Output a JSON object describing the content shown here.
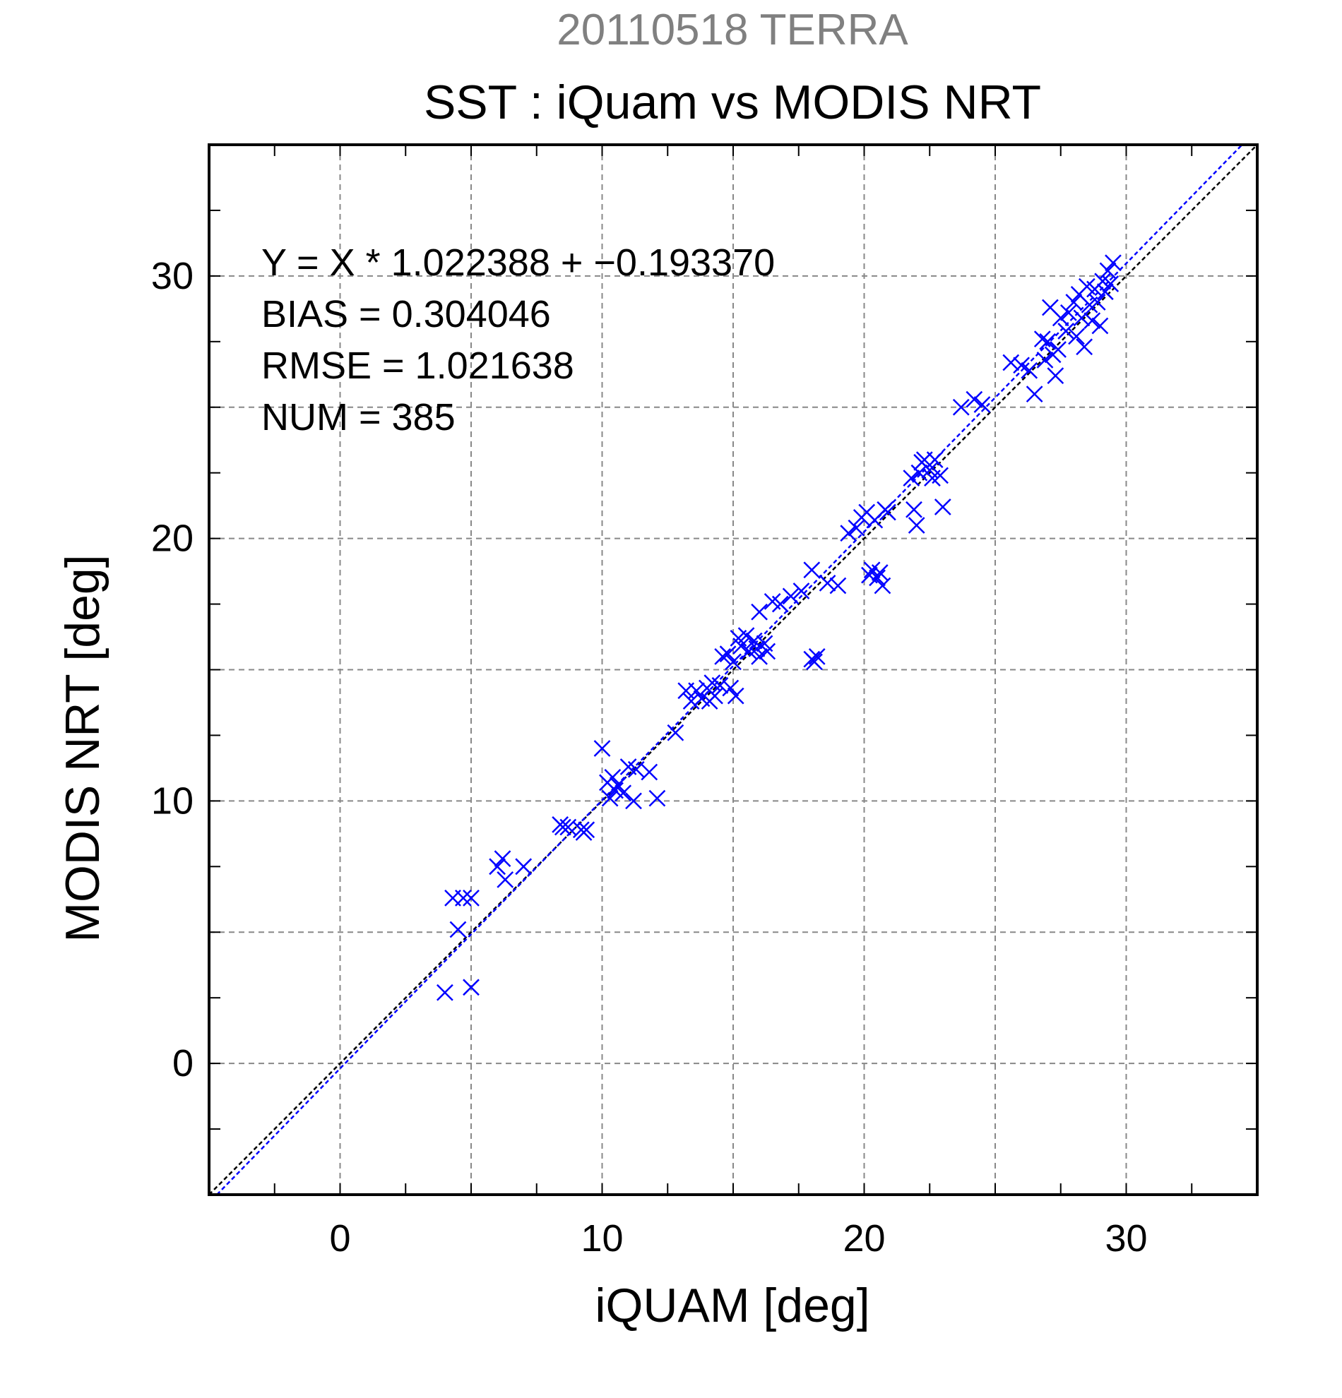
{
  "chart_data": {
    "type": "scatter",
    "date_title": "20110518 TERRA",
    "title": "SST : iQuam vs MODIS NRT",
    "xlabel": "iQUAM [deg]",
    "ylabel": "MODIS NRT [deg]",
    "xlim": [
      -5,
      35
    ],
    "ylim": [
      -5,
      35
    ],
    "xticks": [
      "0",
      "10",
      "20",
      "30"
    ],
    "yticks": [
      "0",
      "10",
      "20",
      "30"
    ],
    "grid": true,
    "annotations": {
      "regression": "Y = X * 1.022388 + −0.193370",
      "bias": "BIAS = 0.304046",
      "rmse": "RMSE = 1.021638",
      "num": "NUM = 385"
    },
    "regression_line": {
      "slope": 1.022388,
      "intercept": -0.19337
    },
    "identity_line": {
      "slope": 1,
      "intercept": 0
    },
    "colors": {
      "points": "#0000ff",
      "regression": "#0000ff",
      "identity": "#000000",
      "grid": "#888888",
      "date_title": "#808080"
    },
    "series": [
      {
        "values": [
          [
            4.0,
            2.7
          ],
          [
            4.3,
            6.3
          ],
          [
            4.7,
            6.3
          ],
          [
            4.5,
            5.1
          ],
          [
            5.0,
            6.3
          ],
          [
            5.0,
            2.9
          ],
          [
            6.0,
            7.5
          ],
          [
            6.2,
            7.8
          ],
          [
            6.3,
            7.0
          ],
          [
            7.0,
            7.5
          ],
          [
            8.4,
            9.1
          ],
          [
            8.5,
            9.0
          ],
          [
            8.7,
            9.0
          ],
          [
            9.2,
            8.9
          ],
          [
            9.3,
            8.8
          ],
          [
            9.4,
            8.9
          ],
          [
            10.0,
            12.0
          ],
          [
            10.2,
            10.7
          ],
          [
            10.3,
            10.1
          ],
          [
            10.4,
            10.9
          ],
          [
            10.5,
            10.4
          ],
          [
            10.6,
            10.6
          ],
          [
            10.8,
            10.3
          ],
          [
            11.0,
            11.3
          ],
          [
            11.2,
            10.0
          ],
          [
            11.3,
            11.2
          ],
          [
            11.8,
            11.1
          ],
          [
            12.1,
            10.1
          ],
          [
            12.8,
            12.6
          ],
          [
            13.2,
            14.2
          ],
          [
            13.4,
            13.8
          ],
          [
            13.6,
            14.2
          ],
          [
            13.8,
            13.9
          ],
          [
            14.0,
            14.3
          ],
          [
            14.1,
            13.8
          ],
          [
            14.2,
            14.5
          ],
          [
            14.3,
            14.0
          ],
          [
            14.5,
            14.4
          ],
          [
            14.6,
            15.5
          ],
          [
            14.8,
            15.6
          ],
          [
            14.9,
            14.3
          ],
          [
            15.0,
            15.3
          ],
          [
            15.1,
            14.0
          ],
          [
            15.2,
            16.2
          ],
          [
            15.3,
            15.9
          ],
          [
            15.5,
            16.3
          ],
          [
            15.6,
            15.7
          ],
          [
            15.8,
            16.1
          ],
          [
            15.9,
            15.8
          ],
          [
            16.0,
            15.5
          ],
          [
            16.2,
            16.0
          ],
          [
            16.3,
            15.7
          ],
          [
            16.0,
            17.2
          ],
          [
            16.5,
            17.6
          ],
          [
            16.8,
            17.5
          ],
          [
            17.2,
            17.8
          ],
          [
            17.6,
            18.0
          ],
          [
            18.0,
            15.4
          ],
          [
            18.1,
            15.3
          ],
          [
            18.2,
            15.5
          ],
          [
            18.0,
            18.8
          ],
          [
            18.6,
            18.3
          ],
          [
            19.0,
            18.2
          ],
          [
            19.4,
            20.2
          ],
          [
            19.7,
            20.4
          ],
          [
            19.9,
            20.8
          ],
          [
            20.1,
            21.0
          ],
          [
            20.2,
            18.6
          ],
          [
            20.3,
            18.8
          ],
          [
            20.4,
            20.7
          ],
          [
            20.5,
            18.5
          ],
          [
            20.6,
            18.7
          ],
          [
            20.7,
            18.2
          ],
          [
            20.8,
            21.1
          ],
          [
            20.9,
            21.0
          ],
          [
            21.8,
            22.3
          ],
          [
            21.9,
            21.1
          ],
          [
            22.0,
            20.5
          ],
          [
            22.1,
            22.5
          ],
          [
            22.2,
            22.9
          ],
          [
            22.3,
            23.0
          ],
          [
            22.5,
            22.6
          ],
          [
            22.6,
            22.3
          ],
          [
            22.7,
            23.0
          ],
          [
            22.9,
            22.4
          ],
          [
            23.0,
            21.2
          ],
          [
            23.7,
            25.0
          ],
          [
            24.2,
            25.3
          ],
          [
            24.5,
            25.1
          ],
          [
            25.6,
            26.7
          ],
          [
            26.0,
            26.6
          ],
          [
            26.3,
            26.4
          ],
          [
            26.5,
            25.5
          ],
          [
            26.8,
            27.6
          ],
          [
            26.9,
            26.8
          ],
          [
            27.0,
            27.5
          ],
          [
            27.1,
            28.8
          ],
          [
            27.2,
            27.0
          ],
          [
            27.3,
            26.2
          ],
          [
            27.4,
            27.2
          ],
          [
            27.5,
            28.4
          ],
          [
            27.7,
            27.9
          ],
          [
            27.8,
            28.6
          ],
          [
            28.0,
            29.0
          ],
          [
            28.1,
            27.7
          ],
          [
            28.2,
            29.3
          ],
          [
            28.3,
            28.4
          ],
          [
            28.4,
            27.3
          ],
          [
            28.5,
            29.6
          ],
          [
            28.6,
            28.9
          ],
          [
            28.7,
            28.3
          ],
          [
            28.8,
            29.5
          ],
          [
            28.9,
            29.0
          ],
          [
            29.0,
            28.1
          ],
          [
            29.1,
            29.8
          ],
          [
            29.2,
            29.4
          ],
          [
            29.3,
            30.2
          ],
          [
            29.4,
            29.7
          ],
          [
            29.5,
            30.5
          ]
        ]
      }
    ]
  }
}
